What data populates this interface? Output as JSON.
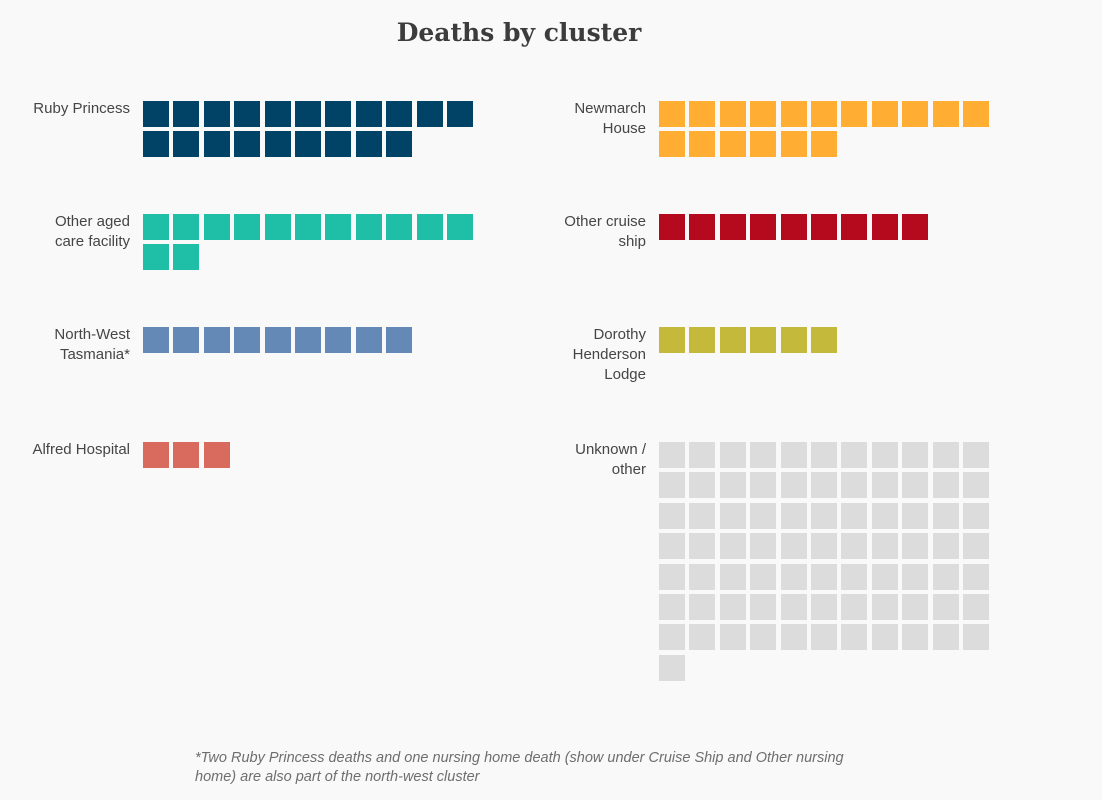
{
  "chart_data": {
    "type": "waffle",
    "title": "Deaths by cluster",
    "units_per_cell": 1,
    "columns_per_row": 11,
    "clusters": [
      {
        "name": "Ruby Princess",
        "label": "Ruby Princess",
        "value": 20,
        "color": "#004366"
      },
      {
        "name": "Newmarch House",
        "label": "Newmarch\nHouse",
        "value": 17,
        "color": "#ffad33"
      },
      {
        "name": "Other aged care facility",
        "label": "Other aged\ncare facility",
        "value": 13,
        "color": "#1fbea6"
      },
      {
        "name": "Other cruise ship",
        "label": "Other cruise\nship",
        "value": 9,
        "color": "#b5091d"
      },
      {
        "name": "North-West Tasmania*",
        "label": "North-West\nTasmania*",
        "value": 9,
        "color": "#6589b7"
      },
      {
        "name": "Dorothy Henderson Lodge",
        "label": "Dorothy\nHenderson\nLodge",
        "value": 6,
        "color": "#c4b93b"
      },
      {
        "name": "Alfred Hospital",
        "label": "Alfred Hospital",
        "value": 3,
        "color": "#d96a5e"
      },
      {
        "name": "Unknown / other",
        "label": "Unknown /\nother",
        "value": 78,
        "color": "#dcdcdc"
      }
    ]
  },
  "footnote": "*Two Ruby Princess deaths and one nursing home death (show under Cruise Ship and Other nursing home) are also part of the north-west cluster"
}
